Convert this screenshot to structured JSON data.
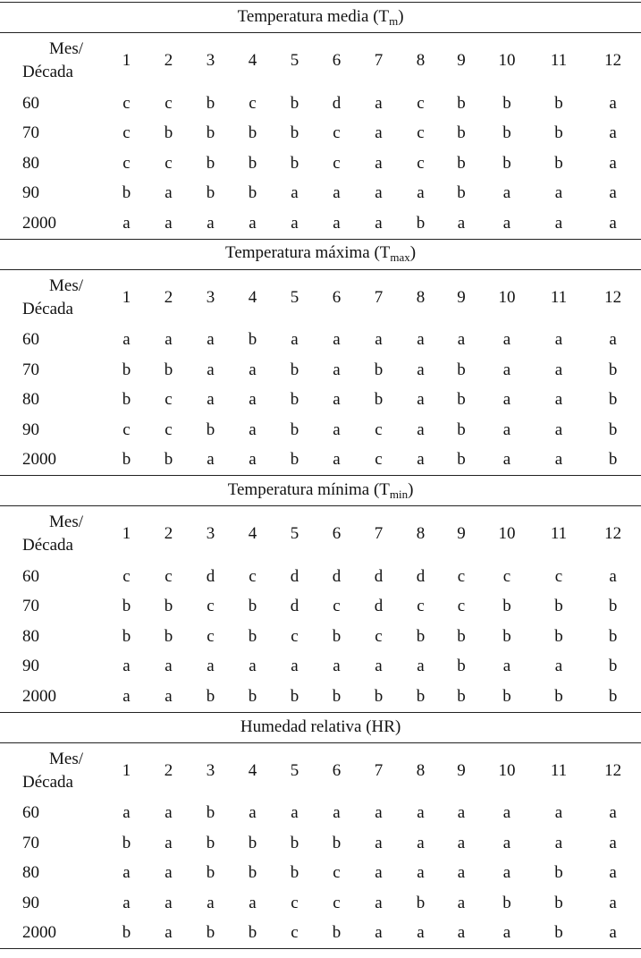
{
  "sections": [
    {
      "title": {
        "prefix": "Temperatura media (T",
        "sub": "m",
        "suffix": ")"
      },
      "header": {
        "line1": "Mes/",
        "line2": "Década",
        "months": [
          "1",
          "2",
          "3",
          "4",
          "5",
          "6",
          "7",
          "8",
          "9",
          "10",
          "11",
          "12"
        ]
      },
      "rows": [
        {
          "label": "60",
          "values": [
            "c",
            "c",
            "b",
            "c",
            "b",
            "d",
            "a",
            "c",
            "b",
            "b",
            "b",
            "a"
          ]
        },
        {
          "label": "70",
          "values": [
            "c",
            "b",
            "b",
            "b",
            "b",
            "c",
            "a",
            "c",
            "b",
            "b",
            "b",
            "a"
          ]
        },
        {
          "label": "80",
          "values": [
            "c",
            "c",
            "b",
            "b",
            "b",
            "c",
            "a",
            "c",
            "b",
            "b",
            "b",
            "a"
          ]
        },
        {
          "label": "90",
          "values": [
            "b",
            "a",
            "b",
            "b",
            "a",
            "a",
            "a",
            "a",
            "b",
            "a",
            "a",
            "a"
          ]
        },
        {
          "label": "2000",
          "values": [
            "a",
            "a",
            "a",
            "a",
            "a",
            "a",
            "a",
            "b",
            "a",
            "a",
            "a",
            "a"
          ]
        }
      ]
    },
    {
      "title": {
        "prefix": "Temperatura máxima (T",
        "sub": "max",
        "suffix": ")"
      },
      "header": {
        "line1": "Mes/",
        "line2": "Década",
        "months": [
          "1",
          "2",
          "3",
          "4",
          "5",
          "6",
          "7",
          "8",
          "9",
          "10",
          "11",
          "12"
        ]
      },
      "rows": [
        {
          "label": "60",
          "values": [
            "a",
            "a",
            "a",
            "b",
            "a",
            "a",
            "a",
            "a",
            "a",
            "a",
            "a",
            "a"
          ]
        },
        {
          "label": "70",
          "values": [
            "b",
            "b",
            "a",
            "a",
            "b",
            "a",
            "b",
            "a",
            "b",
            "a",
            "a",
            "b"
          ]
        },
        {
          "label": "80",
          "values": [
            "b",
            "c",
            "a",
            "a",
            "b",
            "a",
            "b",
            "a",
            "b",
            "a",
            "a",
            "b"
          ]
        },
        {
          "label": "90",
          "values": [
            "c",
            "c",
            "b",
            "a",
            "b",
            "a",
            "c",
            "a",
            "b",
            "a",
            "a",
            "b"
          ]
        },
        {
          "label": "2000",
          "values": [
            "b",
            "b",
            "a",
            "a",
            "b",
            "a",
            "c",
            "a",
            "b",
            "a",
            "a",
            "b"
          ]
        }
      ]
    },
    {
      "title": {
        "prefix": "Temperatura mínima (T",
        "sub": "min",
        "suffix": ")"
      },
      "header": {
        "line1": "Mes/",
        "line2": "Década",
        "months": [
          "1",
          "2",
          "3",
          "4",
          "5",
          "6",
          "7",
          "8",
          "9",
          "10",
          "11",
          "12"
        ]
      },
      "rows": [
        {
          "label": "60",
          "values": [
            "c",
            "c",
            "d",
            "c",
            "d",
            "d",
            "d",
            "d",
            "c",
            "c",
            "c",
            "a"
          ]
        },
        {
          "label": "70",
          "values": [
            "b",
            "b",
            "c",
            "b",
            "d",
            "c",
            "d",
            "c",
            "c",
            "b",
            "b",
            "b"
          ]
        },
        {
          "label": "80",
          "values": [
            "b",
            "b",
            "c",
            "b",
            "c",
            "b",
            "c",
            "b",
            "b",
            "b",
            "b",
            "b"
          ]
        },
        {
          "label": "90",
          "values": [
            "a",
            "a",
            "a",
            "a",
            "a",
            "a",
            "a",
            "a",
            "b",
            "a",
            "a",
            "b"
          ]
        },
        {
          "label": "2000",
          "values": [
            "a",
            "a",
            "b",
            "b",
            "b",
            "b",
            "b",
            "b",
            "b",
            "b",
            "b",
            "b"
          ]
        }
      ]
    },
    {
      "title": {
        "prefix": "Humedad relativa (HR)"
      },
      "header": {
        "line1": "Mes/",
        "line2": "Década",
        "months": [
          "1",
          "2",
          "3",
          "4",
          "5",
          "6",
          "7",
          "8",
          "9",
          "10",
          "11",
          "12"
        ]
      },
      "rows": [
        {
          "label": "60",
          "values": [
            "a",
            "a",
            "b",
            "a",
            "a",
            "a",
            "a",
            "a",
            "a",
            "a",
            "a",
            "a"
          ]
        },
        {
          "label": "70",
          "values": [
            "b",
            "a",
            "b",
            "b",
            "b",
            "b",
            "a",
            "a",
            "a",
            "a",
            "a",
            "a"
          ]
        },
        {
          "label": "80",
          "values": [
            "a",
            "a",
            "b",
            "b",
            "b",
            "c",
            "a",
            "a",
            "a",
            "a",
            "b",
            "a"
          ]
        },
        {
          "label": "90",
          "values": [
            "a",
            "a",
            "a",
            "a",
            "c",
            "c",
            "a",
            "b",
            "a",
            "b",
            "b",
            "a"
          ]
        },
        {
          "label": "2000",
          "values": [
            "b",
            "a",
            "b",
            "b",
            "c",
            "b",
            "a",
            "a",
            "a",
            "a",
            "b",
            "a"
          ]
        }
      ]
    }
  ]
}
